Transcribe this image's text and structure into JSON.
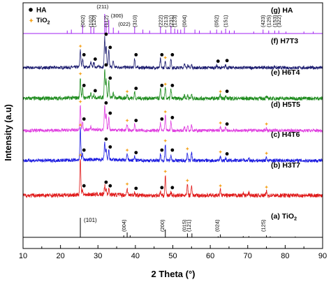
{
  "chart_data": {
    "type": "line",
    "title": "",
    "xlabel": "2 Theta (°)",
    "ylabel": "Intensity (a.u)",
    "xlim": [
      10,
      90
    ],
    "xticks": [
      10,
      20,
      30,
      40,
      50,
      60,
      70,
      80,
      90
    ],
    "grid": false,
    "legend": {
      "position": "top-left",
      "entries": [
        {
          "label": "HA",
          "marker": "circle",
          "color": "#000000"
        },
        {
          "label": "TiO",
          "sub": "2",
          "marker": "star",
          "color": "#f5a623"
        }
      ]
    },
    "series": [
      {
        "name": "(g) HA",
        "color": "#a020f0",
        "kind": "reference",
        "peaks": [
          [
            21.8,
            0.15
          ],
          [
            22.9,
            0.2
          ],
          [
            25.9,
            0.45
          ],
          [
            28.1,
            0.35
          ],
          [
            28.9,
            0.3
          ],
          [
            31.8,
            1.0
          ],
          [
            32.2,
            0.6
          ],
          [
            32.9,
            0.7
          ],
          [
            34.1,
            0.3
          ],
          [
            35.5,
            0.15
          ],
          [
            39.8,
            0.35
          ],
          [
            42.0,
            0.2
          ],
          [
            43.8,
            0.15
          ],
          [
            46.7,
            0.35
          ],
          [
            48.1,
            0.2
          ],
          [
            49.5,
            0.4
          ],
          [
            50.5,
            0.25
          ],
          [
            51.3,
            0.2
          ],
          [
            52.1,
            0.2
          ],
          [
            53.1,
            0.3
          ],
          [
            55.9,
            0.2
          ],
          [
            57.1,
            0.15
          ],
          [
            60.0,
            0.15
          ],
          [
            61.7,
            0.2
          ],
          [
            63.0,
            0.15
          ],
          [
            64.1,
            0.25
          ],
          [
            65.1,
            0.15
          ],
          [
            66.4,
            0.15
          ],
          [
            71.6,
            0.1
          ],
          [
            74.1,
            0.2
          ],
          [
            75.6,
            0.15
          ],
          [
            77.2,
            0.15
          ],
          [
            78.3,
            0.15
          ],
          [
            80.2,
            0.1
          ],
          [
            85.0,
            0.1
          ],
          [
            87.5,
            0.1
          ]
        ],
        "annotations": [
          "(002)",
          "(102)",
          "(120)",
          "(211)",
          "(112)",
          "(300)",
          "(022)",
          "(310)",
          "(222)",
          "(213)",
          "(231)",
          "(123)",
          "(004)",
          "(052)",
          "(151)",
          "(423)",
          "(125)",
          "(153)",
          "(322)"
        ]
      },
      {
        "name": "(f) H7T3",
        "color": "#1a1a6e",
        "noise": 0.05,
        "peaks": [
          [
            25.3,
            0.6
          ],
          [
            25.9,
            0.3
          ],
          [
            28.1,
            0.15
          ],
          [
            28.9,
            0.15
          ],
          [
            31.8,
            1.0
          ],
          [
            32.2,
            0.7
          ],
          [
            32.9,
            0.55
          ],
          [
            34.1,
            0.2
          ],
          [
            39.8,
            0.3
          ],
          [
            46.7,
            0.3
          ],
          [
            48.0,
            0.2
          ],
          [
            49.5,
            0.3
          ],
          [
            53.1,
            0.15
          ],
          [
            54.0,
            0.1
          ],
          [
            55.0,
            0.1
          ],
          [
            61.7,
            0.08
          ],
          [
            64.1,
            0.1
          ],
          [
            74.5,
            0.05
          ],
          [
            77.2,
            0.05
          ]
        ]
      },
      {
        "name": "(e) H6T4",
        "color": "#1e8c1e",
        "noise": 0.06,
        "peaks": [
          [
            25.3,
            0.7
          ],
          [
            25.9,
            0.3
          ],
          [
            28.1,
            0.12
          ],
          [
            28.9,
            0.12
          ],
          [
            31.8,
            1.0
          ],
          [
            32.2,
            0.6
          ],
          [
            32.9,
            0.55
          ],
          [
            34.1,
            0.15
          ],
          [
            37.8,
            0.1
          ],
          [
            39.8,
            0.2
          ],
          [
            46.7,
            0.3
          ],
          [
            48.0,
            0.35
          ],
          [
            49.5,
            0.3
          ],
          [
            53.1,
            0.12
          ],
          [
            54.0,
            0.12
          ],
          [
            55.0,
            0.12
          ],
          [
            62.7,
            0.1
          ],
          [
            64.1,
            0.1
          ],
          [
            75.0,
            0.05
          ]
        ]
      },
      {
        "name": "(d) H5T5",
        "color": "#e040e0",
        "noise": 0.05,
        "peaks": [
          [
            25.3,
            0.85
          ],
          [
            25.9,
            0.25
          ],
          [
            28.1,
            0.1
          ],
          [
            31.8,
            0.8
          ],
          [
            32.2,
            0.5
          ],
          [
            32.9,
            0.45
          ],
          [
            37.8,
            0.2
          ],
          [
            39.8,
            0.2
          ],
          [
            46.7,
            0.25
          ],
          [
            48.0,
            0.5
          ],
          [
            49.5,
            0.3
          ],
          [
            53.1,
            0.12
          ],
          [
            54.0,
            0.2
          ],
          [
            55.0,
            0.2
          ],
          [
            62.7,
            0.12
          ],
          [
            64.1,
            0.08
          ],
          [
            70.3,
            0.05
          ],
          [
            75.0,
            0.08
          ]
        ]
      },
      {
        "name": "(c) H4T6",
        "color": "#1a1ae0",
        "noise": 0.05,
        "peaks": [
          [
            25.3,
            1.0
          ],
          [
            25.9,
            0.2
          ],
          [
            31.8,
            0.55
          ],
          [
            32.2,
            0.3
          ],
          [
            32.9,
            0.3
          ],
          [
            37.8,
            0.2
          ],
          [
            39.8,
            0.12
          ],
          [
            46.7,
            0.2
          ],
          [
            48.0,
            0.5
          ],
          [
            49.5,
            0.2
          ],
          [
            53.9,
            0.25
          ],
          [
            55.0,
            0.25
          ],
          [
            62.7,
            0.15
          ],
          [
            64.1,
            0.08
          ],
          [
            68.8,
            0.05
          ],
          [
            70.3,
            0.06
          ],
          [
            75.0,
            0.1
          ]
        ]
      },
      {
        "name": "(b) H3T7",
        "color": "#e01a1a",
        "noise": 0.05,
        "peaks": [
          [
            25.3,
            1.0
          ],
          [
            25.9,
            0.15
          ],
          [
            31.8,
            0.25
          ],
          [
            32.2,
            0.15
          ],
          [
            32.9,
            0.15
          ],
          [
            37.8,
            0.2
          ],
          [
            39.8,
            0.08
          ],
          [
            46.7,
            0.1
          ],
          [
            48.0,
            0.55
          ],
          [
            49.5,
            0.1
          ],
          [
            53.9,
            0.3
          ],
          [
            55.0,
            0.3
          ],
          [
            62.7,
            0.15
          ],
          [
            68.8,
            0.06
          ],
          [
            70.3,
            0.07
          ],
          [
            75.0,
            0.12
          ]
        ]
      },
      {
        "name": "(a) TiO",
        "name_sub": "2",
        "color": "#000000",
        "kind": "reference",
        "peaks": [
          [
            25.3,
            1.0
          ],
          [
            36.9,
            0.1
          ],
          [
            37.8,
            0.25
          ],
          [
            38.6,
            0.1
          ],
          [
            48.0,
            0.4
          ],
          [
            53.9,
            0.2
          ],
          [
            55.1,
            0.2
          ],
          [
            62.1,
            0.05
          ],
          [
            62.7,
            0.15
          ],
          [
            68.8,
            0.06
          ],
          [
            70.3,
            0.06
          ],
          [
            75.0,
            0.1
          ],
          [
            76.0,
            0.05
          ],
          [
            82.7,
            0.04
          ]
        ],
        "annotations": [
          "(101)",
          "(004)",
          "(200)",
          "(015)",
          "(121)",
          "(024)",
          "(125)"
        ]
      }
    ]
  }
}
